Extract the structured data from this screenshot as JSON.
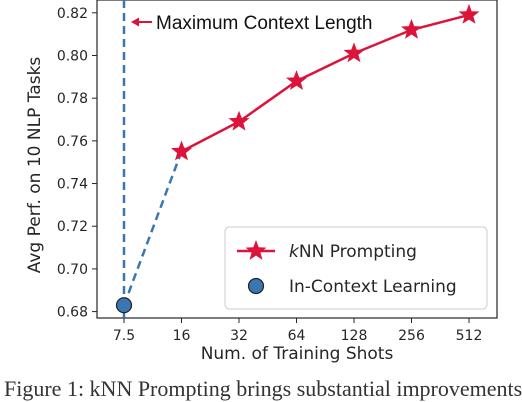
{
  "chart_data": {
    "type": "line",
    "categories": [
      "7.5",
      "16",
      "32",
      "64",
      "128",
      "256",
      "512"
    ],
    "series": [
      {
        "name": "kNN Prompting",
        "x": [
          "16",
          "32",
          "64",
          "128",
          "256",
          "512"
        ],
        "values": [
          0.755,
          0.769,
          0.788,
          0.801,
          0.812,
          0.819
        ],
        "color": "#dc143c",
        "marker": "star",
        "line": "solid"
      },
      {
        "name": "In-Context Learning",
        "x": [
          "7.5"
        ],
        "values": [
          0.683
        ],
        "color": "#3a76b1",
        "marker": "circle"
      }
    ],
    "connector": {
      "from": [
        "7.5",
        0.683
      ],
      "to": [
        "16",
        0.755
      ],
      "style": "dashed",
      "color": "#3a76b1"
    },
    "xlabel": "Num. of Training Shots",
    "ylabel": "Avg Perf. on 10 NLP Tasks",
    "ylim": [
      0.677,
      0.826
    ],
    "yticks": [
      0.68,
      0.7,
      0.72,
      0.74,
      0.76,
      0.78,
      0.8,
      0.82
    ],
    "grid": false,
    "legend": {
      "position": "bottom-right",
      "entries": [
        {
          "label_prefix": "k",
          "label_rest": "NN Prompting"
        },
        {
          "label": "In-Context Learning"
        }
      ]
    },
    "annotation": {
      "text": "Maximum Context Length",
      "x": "7.5",
      "line": "vertical-dashed"
    }
  },
  "caption": "Figure 1: kNN Prompting brings substantial improvements"
}
